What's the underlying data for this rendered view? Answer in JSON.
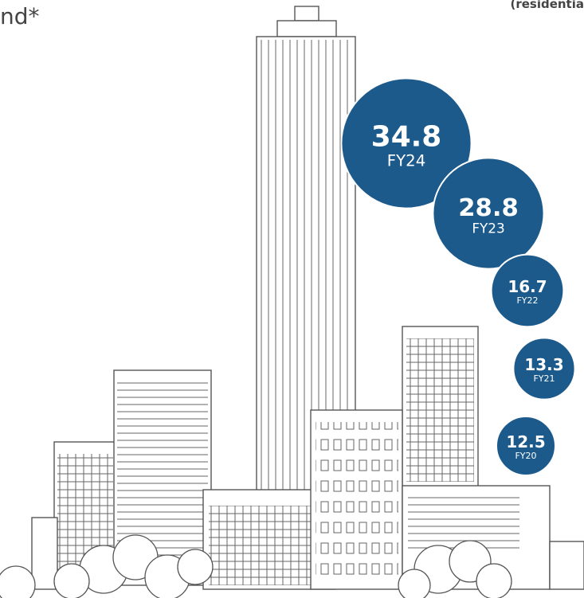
{
  "chart_data": {
    "type": "bubble",
    "subtitle": "nd*",
    "note": "(residentia",
    "categories": [
      "FY24",
      "FY23",
      "FY22",
      "FY21",
      "FY20"
    ],
    "values": [
      34.8,
      28.8,
      16.7,
      13.3,
      12.5
    ],
    "color": "#1c5a8c"
  }
}
